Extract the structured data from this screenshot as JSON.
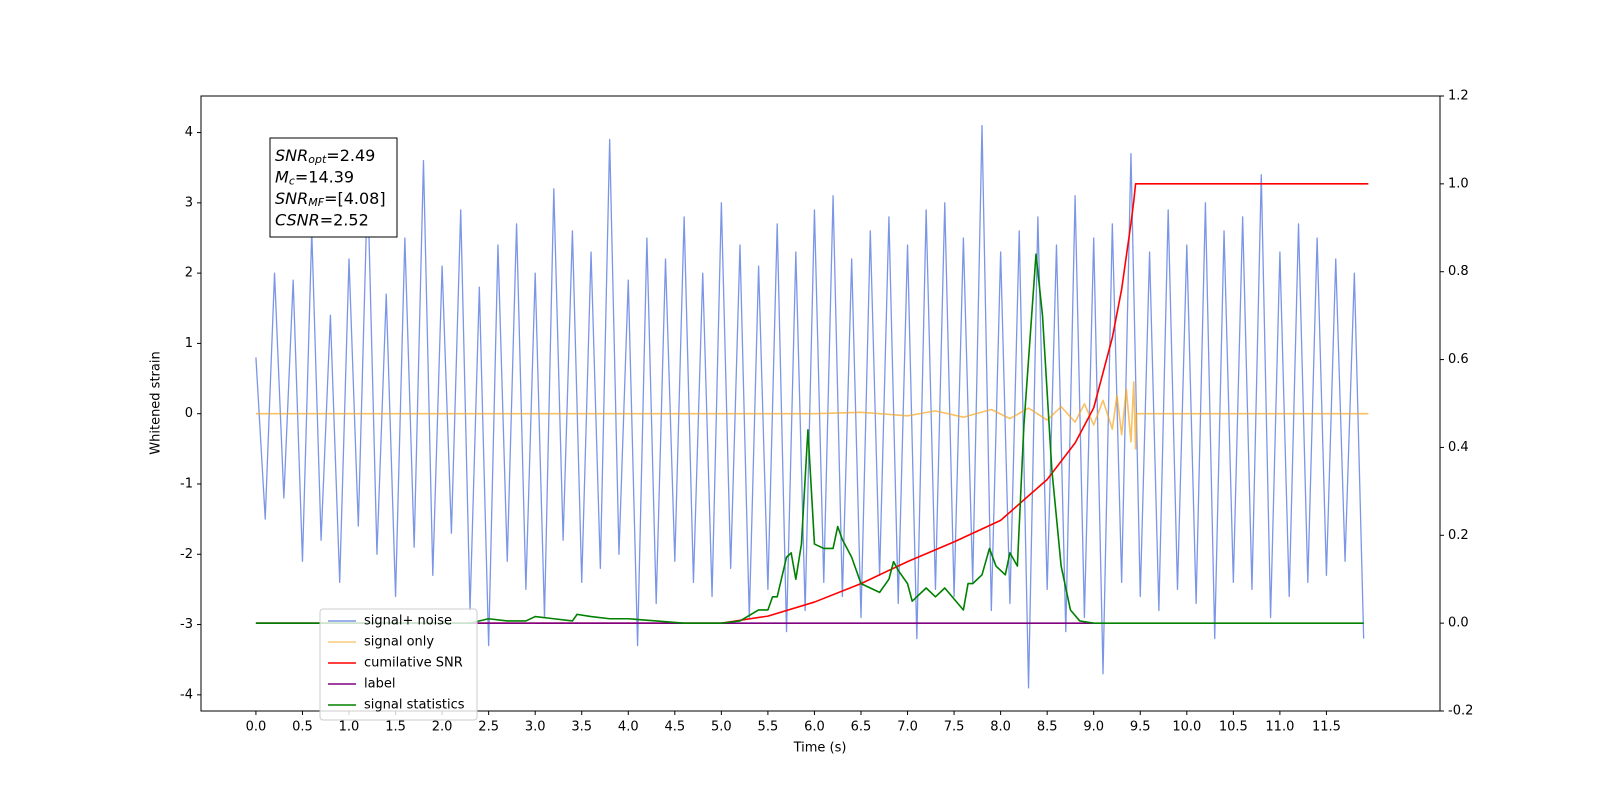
{
  "chart_data": {
    "type": "line",
    "xlabel": "Time (s)",
    "ylabel": "Whitened strain",
    "xlim": [
      -0.59,
      12.72
    ],
    "ylim": [
      -4.23,
      4.52
    ],
    "y2lim": [
      -0.2,
      1.2
    ],
    "xticks": [
      {
        "value": 0,
        "label": "0.0"
      },
      0.5,
      {
        "value": 1,
        "label": "1.0"
      },
      1.5,
      {
        "value": 2,
        "label": "2.0"
      },
      2.5,
      {
        "value": 3,
        "label": "3.0"
      },
      3.5,
      {
        "value": 4,
        "label": "4.0"
      },
      4.5,
      {
        "value": 5,
        "label": "5.0"
      },
      5.5,
      {
        "value": 6,
        "label": "6.0"
      },
      6.5,
      {
        "value": 7,
        "label": "7.0"
      },
      7.5,
      {
        "value": 8,
        "label": "8.0"
      },
      8.5,
      {
        "value": 9,
        "label": "9.0"
      },
      9.5,
      {
        "value": 10,
        "label": "10.0"
      },
      10.5,
      {
        "value": 11,
        "label": "11.0"
      },
      11.5
    ],
    "yticks": [
      -4,
      -3,
      -2,
      -1,
      0,
      1,
      2,
      3,
      4
    ],
    "y2ticks": [
      -0.2,
      {
        "value": 0,
        "label": "0.0"
      },
      0.2,
      0.4,
      0.6,
      0.8,
      {
        "value": 1,
        "label": "1.0"
      },
      1.2
    ],
    "legend": "lower left",
    "annotations": [
      {
        "symbol": "SNR",
        "sub": "opt",
        "text": "=2.49"
      },
      {
        "symbol": "M",
        "sub": "c",
        "text": "=14.39"
      },
      {
        "symbol": "SNR",
        "sub": "MF",
        "text": "=[4.08]"
      },
      {
        "symbol": "CSNR",
        "text": "=2.52"
      }
    ],
    "series": [
      {
        "name": "signal+ noise",
        "color": "#7b96e6",
        "axis": "y",
        "x": [
          0,
          0.1,
          0.2,
          0.3,
          0.4,
          0.5,
          0.6,
          0.7,
          0.8,
          0.9,
          1,
          1.1,
          1.2,
          1.3,
          1.4,
          1.5,
          1.6,
          1.7,
          1.8,
          1.9,
          2,
          2.1,
          2.2,
          2.3,
          2.4,
          2.5,
          2.6,
          2.7,
          2.8,
          2.9,
          3,
          3.1,
          3.2,
          3.3,
          3.4,
          3.5,
          3.6,
          3.7,
          3.8,
          3.9,
          4,
          4.1,
          4.2,
          4.3,
          4.4,
          4.5,
          4.6,
          4.7,
          4.8,
          4.9,
          5,
          5.1,
          5.2,
          5.3,
          5.4,
          5.5,
          5.6,
          5.7,
          5.8,
          5.9,
          6,
          6.1,
          6.2,
          6.3,
          6.4,
          6.5,
          6.6,
          6.7,
          6.8,
          6.9,
          7,
          7.1,
          7.2,
          7.3,
          7.4,
          7.5,
          7.6,
          7.7,
          7.8,
          7.9,
          8,
          8.1,
          8.2,
          8.3,
          8.4,
          8.5,
          8.6,
          8.7,
          8.8,
          8.9,
          9,
          9.1,
          9.2,
          9.3,
          9.4,
          9.5,
          9.6,
          9.7,
          9.8,
          9.9,
          10,
          10.1,
          10.2,
          10.3,
          10.4,
          10.5,
          10.6,
          10.7,
          10.8,
          10.9,
          11,
          11.1,
          11.2,
          11.3,
          11.4,
          11.5,
          11.6,
          11.7,
          11.8,
          11.9
        ],
        "values": [
          0.8,
          -1.5,
          2.0,
          -1.2,
          1.9,
          -2.1,
          2.6,
          -1.8,
          1.4,
          -2.4,
          2.2,
          -1.6,
          3.3,
          -2.0,
          1.7,
          -2.6,
          2.5,
          -1.9,
          3.6,
          -2.3,
          2.1,
          -1.7,
          2.9,
          -2.8,
          1.8,
          -3.3,
          2.4,
          -2.1,
          2.7,
          -2.5,
          2.0,
          -2.9,
          3.2,
          -1.8,
          2.6,
          -2.4,
          2.3,
          -2.2,
          3.9,
          -2.0,
          1.9,
          -3.3,
          2.5,
          -2.7,
          2.2,
          -2.1,
          2.8,
          -2.4,
          2.0,
          -2.6,
          3.0,
          -2.2,
          2.4,
          -2.9,
          2.1,
          -2.5,
          2.7,
          -3.1,
          2.3,
          -2.8,
          2.9,
          -2.4,
          3.1,
          -2.6,
          2.2,
          -2.9,
          2.6,
          -2.3,
          2.8,
          -2.7,
          2.4,
          -3.2,
          2.9,
          -2.5,
          3.0,
          -2.6,
          2.5,
          -2.4,
          4.1,
          -2.8,
          2.3,
          -2.7,
          2.6,
          -3.9,
          2.8,
          -2.5,
          2.4,
          -3.1,
          3.1,
          -2.9,
          2.5,
          -3.7,
          2.7,
          -2.4,
          3.7,
          -2.6,
          2.3,
          -2.8,
          2.9,
          -2.5,
          2.4,
          -2.7,
          3.0,
          -3.2,
          2.6,
          -2.4,
          2.8,
          -2.5,
          3.4,
          -2.9,
          2.3,
          -2.6,
          2.7,
          -2.4,
          2.5,
          -2.3,
          2.2,
          -2.1,
          2.0,
          -3.2
        ]
      },
      {
        "name": "signal only",
        "color": "#f5a623",
        "axis": "y",
        "x": [
          0,
          6.0,
          6.5,
          7.0,
          7.3,
          7.6,
          7.9,
          8.1,
          8.3,
          8.5,
          8.65,
          8.8,
          8.9,
          9.0,
          9.1,
          9.2,
          9.25,
          9.3,
          9.35,
          9.4,
          9.43,
          9.45,
          9.46,
          11.95
        ],
        "values": [
          0,
          0,
          0.02,
          -0.03,
          0.04,
          -0.05,
          0.06,
          -0.07,
          0.08,
          -0.09,
          0.1,
          -0.12,
          0.14,
          -0.16,
          0.19,
          -0.22,
          0.26,
          -0.3,
          0.35,
          -0.4,
          0.45,
          -0.5,
          0,
          0
        ]
      },
      {
        "name": "cumilative SNR",
        "color": "#ff0000",
        "axis": "y2",
        "x": [
          0,
          5.0,
          5.5,
          6.0,
          6.5,
          7.0,
          7.5,
          8.0,
          8.5,
          8.8,
          9.0,
          9.2,
          9.3,
          9.4,
          9.43,
          9.45,
          11.95
        ],
        "values": [
          0,
          0,
          0.016,
          0.048,
          0.09,
          0.14,
          0.185,
          0.234,
          0.327,
          0.41,
          0.49,
          0.65,
          0.76,
          0.91,
          0.96,
          1.0,
          1.0
        ]
      },
      {
        "name": "label",
        "color": "#800080",
        "axis": "y2",
        "x": [
          0,
          9.0
        ],
        "values": [
          0,
          0
        ]
      },
      {
        "name": "signal statistics",
        "color": "#008000",
        "axis": "y2",
        "x": [
          0,
          2.3,
          2.5,
          2.7,
          2.9,
          3.0,
          3.2,
          3.4,
          3.45,
          3.6,
          3.8,
          4.0,
          4.3,
          4.6,
          5.0,
          5.2,
          5.4,
          5.5,
          5.55,
          5.6,
          5.7,
          5.75,
          5.8,
          5.86,
          5.93,
          6.0,
          6.1,
          6.2,
          6.25,
          6.3,
          6.4,
          6.5,
          6.6,
          6.7,
          6.8,
          6.85,
          6.9,
          7.0,
          7.05,
          7.2,
          7.3,
          7.4,
          7.6,
          7.65,
          7.7,
          7.8,
          7.88,
          7.95,
          8.05,
          8.1,
          8.18,
          8.25,
          8.38,
          8.45,
          8.55,
          8.65,
          8.75,
          8.85,
          9.0,
          11.9
        ],
        "values": [
          0,
          0,
          0.01,
          0.005,
          0.005,
          0.015,
          0.01,
          0.005,
          0.02,
          0.015,
          0.01,
          0.01,
          0.005,
          0,
          0,
          0.005,
          0.03,
          0.03,
          0.06,
          0.06,
          0.15,
          0.16,
          0.1,
          0.18,
          0.44,
          0.18,
          0.17,
          0.17,
          0.22,
          0.19,
          0.15,
          0.09,
          0.08,
          0.07,
          0.1,
          0.14,
          0.12,
          0.09,
          0.05,
          0.08,
          0.06,
          0.08,
          0.03,
          0.09,
          0.09,
          0.11,
          0.17,
          0.13,
          0.11,
          0.16,
          0.13,
          0.45,
          0.84,
          0.7,
          0.35,
          0.13,
          0.03,
          0.005,
          0,
          0
        ]
      }
    ]
  }
}
